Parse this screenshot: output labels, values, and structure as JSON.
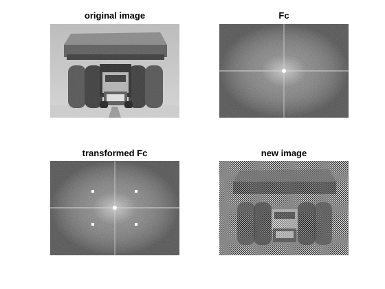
{
  "figure": {
    "panels": [
      {
        "title": "original image",
        "content": "grayscale photograph of a large mining haul truck"
      },
      {
        "title": "Fc",
        "content": "log-magnitude Fourier spectrum"
      },
      {
        "title": "transformed Fc",
        "content": "modified Fourier spectrum with four bright peak dots"
      },
      {
        "title": "new image",
        "content": "reconstructed truck image with dense halftone/checker noise"
      }
    ]
  }
}
